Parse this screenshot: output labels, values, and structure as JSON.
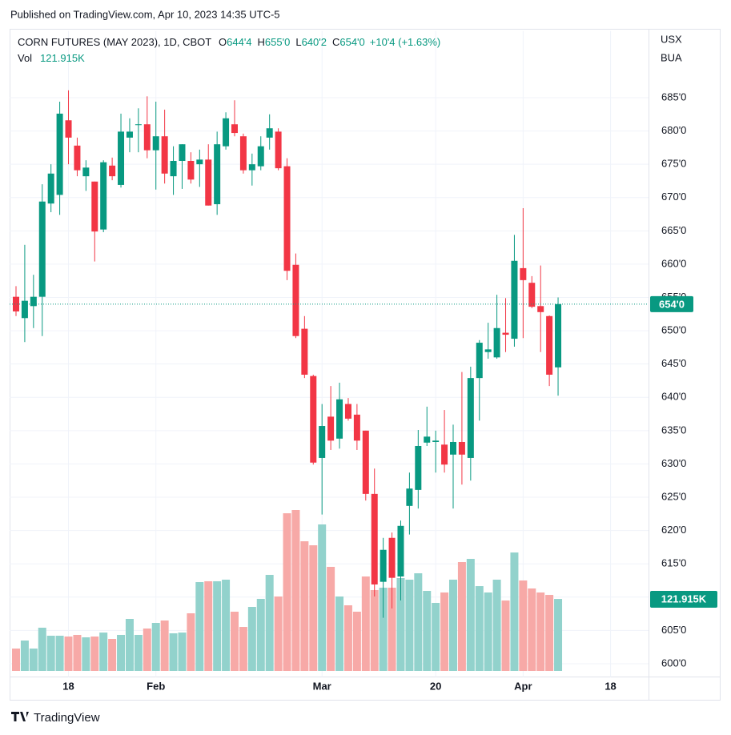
{
  "publisher": "Published on TradingView.com, Apr 10, 2023 14:35 UTC-5",
  "footer": "TradingView",
  "header": {
    "symbol": "CORN FUTURES (MAY 2023), 1D, CBOT",
    "ohlc": [
      {
        "key": "O",
        "text": "644'4"
      },
      {
        "key": "H",
        "text": "655'0"
      },
      {
        "key": "L",
        "text": "640'2"
      },
      {
        "key": "C",
        "text": "654'0"
      }
    ],
    "change": "+10'4 (+1.63%)",
    "vol_key": "Vol",
    "vol_text": "121.915K"
  },
  "units": [
    "USX",
    "BUA"
  ],
  "chart_data": {
    "type": "candlestick",
    "categories": [
      null,
      null,
      null,
      null,
      null,
      null,
      "18",
      null,
      null,
      null,
      null,
      null,
      null,
      null,
      null,
      null,
      "Feb",
      null,
      null,
      null,
      null,
      null,
      null,
      null,
      null,
      null,
      null,
      null,
      null,
      null,
      null,
      null,
      null,
      null,
      null,
      "Mar",
      null,
      null,
      null,
      null,
      null,
      null,
      null,
      null,
      null,
      null,
      null,
      null,
      "20",
      null,
      null,
      null,
      null,
      null,
      null,
      null,
      null,
      null,
      "Apr",
      null,
      null,
      null,
      null,
      null,
      null,
      null,
      null,
      null,
      "18",
      null,
      null,
      null,
      null
    ],
    "open": [
      655.1,
      651.9,
      653.7,
      655.1,
      669.1,
      670.4,
      681.6,
      677.8,
      673.2,
      672.4,
      665.2,
      674.8,
      671.9,
      679.0,
      680.9,
      681.0,
      677.1,
      679.2,
      673.2,
      675.5,
      675.5,
      675.0,
      675.7,
      669.0,
      677.7,
      681.0,
      679.2,
      674.1,
      674.7,
      679.0,
      679.9,
      674.7,
      659.9,
      650.3,
      643.2,
      630.9,
      637.1,
      633.8,
      639.0,
      637.4,
      635.0,
      625.5,
      612.3,
      618.9,
      613.1,
      623.7,
      626.1,
      633.2,
      633.3,
      632.9,
      631.4,
      633.3,
      630.9,
      642.9,
      646.8,
      646.0,
      649.7,
      648.8,
      659.4,
      657.2,
      653.7,
      652.2,
      644.5,
      null,
      null,
      null,
      null,
      null,
      null,
      null,
      null,
      null,
      null
    ],
    "high": [
      656.7,
      662.9,
      658.4,
      672.0,
      675.0,
      684.4,
      686.1,
      679.0,
      675.6,
      672.4,
      675.6,
      676.0,
      682.6,
      681.9,
      683.4,
      685.2,
      684.4,
      683.2,
      677.7,
      678.0,
      676.8,
      677.2,
      678.0,
      679.9,
      682.8,
      684.6,
      679.6,
      676.6,
      679.2,
      682.5,
      680.4,
      675.9,
      661.6,
      652.2,
      643.4,
      639.0,
      641.7,
      642.2,
      639.9,
      639.0,
      635.0,
      629.3,
      618.9,
      619.7,
      621.5,
      628.7,
      635.1,
      638.6,
      635.0,
      638.1,
      635.9,
      643.8,
      644.6,
      648.6,
      651.2,
      655.4,
      654.9,
      664.4,
      668.4,
      658.2,
      659.8,
      652.3,
      655.0,
      null,
      null,
      null,
      null,
      null,
      null,
      null,
      null,
      null,
      null
    ],
    "low": [
      652.2,
      648.3,
      650.4,
      649.2,
      667.8,
      667.4,
      675.0,
      673.2,
      671.0,
      660.4,
      664.8,
      672.6,
      671.5,
      676.8,
      676.8,
      675.9,
      671.2,
      672.1,
      670.4,
      671.3,
      672.1,
      671.6,
      668.8,
      667.4,
      677.2,
      679.2,
      673.6,
      671.8,
      674.1,
      677.2,
      674.1,
      657.6,
      648.9,
      642.9,
      629.9,
      622.4,
      632.1,
      632.3,
      636.5,
      632.1,
      624.5,
      610.1,
      606.9,
      608.3,
      609.5,
      619.4,
      623.3,
      632.7,
      628.7,
      628.7,
      623.3,
      626.9,
      627.5,
      636.5,
      645.8,
      645.8,
      646.8,
      647.6,
      648.9,
      653.4,
      646.8,
      641.7,
      640.25,
      null,
      null,
      null,
      null,
      null,
      null,
      null,
      null,
      null,
      null
    ],
    "close": [
      652.9,
      654.5,
      655.1,
      669.4,
      673.6,
      682.6,
      679.0,
      674.1,
      674.5,
      664.9,
      675.3,
      673.2,
      679.9,
      679.9,
      681.0,
      677.1,
      679.2,
      673.6,
      675.5,
      678.0,
      672.7,
      675.7,
      668.8,
      678.0,
      681.9,
      679.7,
      674.1,
      675.0,
      677.7,
      680.4,
      674.4,
      659.0,
      649.2,
      643.4,
      630.2,
      635.7,
      633.5,
      639.7,
      636.8,
      633.5,
      625.5,
      611.9,
      617.1,
      612.9,
      620.7,
      626.3,
      632.7,
      634.1,
      633.5,
      629.9,
      633.3,
      631.4,
      642.9,
      648.2,
      647.2,
      650.4,
      649.4,
      660.5,
      657.6,
      653.6,
      652.8,
      643.4,
      654.0,
      null,
      null,
      null,
      null,
      null,
      null,
      null,
      null,
      null,
      null
    ],
    "volume": [
      37900,
      51500,
      37900,
      73200,
      59600,
      59600,
      58300,
      61000,
      56900,
      58300,
      65000,
      54200,
      61000,
      88100,
      61000,
      71800,
      81300,
      85400,
      63700,
      65000,
      97600,
      150400,
      151800,
      151800,
      154500,
      100300,
      74500,
      108400,
      122000,
      162600,
      126000,
      266900,
      272400,
      219500,
      212700,
      248000,
      176200,
      126000,
      111100,
      100300,
      159900,
      136900,
      140900,
      140900,
      157200,
      154500,
      165300,
      135500,
      115200,
      132800,
      154500,
      184300,
      189700,
      143600,
      132800,
      154500,
      119200,
      200500,
      153100,
      139600,
      132800,
      128700,
      121915,
      null,
      null,
      null,
      null,
      null,
      null,
      null,
      null,
      null,
      null
    ],
    "price_tag": "654'0",
    "volume_tag": "121.915K",
    "up_color": "#089981",
    "down_color": "#f23645",
    "up_volume_color": "#92d2cc",
    "down_volume_color": "#f7a9a7",
    "ylim": [
      598,
      695
    ],
    "yticks": [
      {
        "value": 600,
        "label": "600'0"
      },
      {
        "value": 605,
        "label": "605'0"
      },
      {
        "value": 610,
        "label": "610'0"
      },
      {
        "value": 615,
        "label": "615'0"
      },
      {
        "value": 620,
        "label": "620'0"
      },
      {
        "value": 625,
        "label": "625'0"
      },
      {
        "value": 630,
        "label": "630'0"
      },
      {
        "value": 635,
        "label": "635'0"
      },
      {
        "value": 640,
        "label": "640'0"
      },
      {
        "value": 645,
        "label": "645'0"
      },
      {
        "value": 650,
        "label": "650'0"
      },
      {
        "value": 655,
        "label": "655'0"
      },
      {
        "value": 660,
        "label": "660'0"
      },
      {
        "value": 665,
        "label": "665'0"
      },
      {
        "value": 670,
        "label": "670'0"
      },
      {
        "value": 675,
        "label": "675'0"
      },
      {
        "value": 680,
        "label": "680'0"
      },
      {
        "value": 685,
        "label": "685'0"
      }
    ],
    "grid": true
  }
}
